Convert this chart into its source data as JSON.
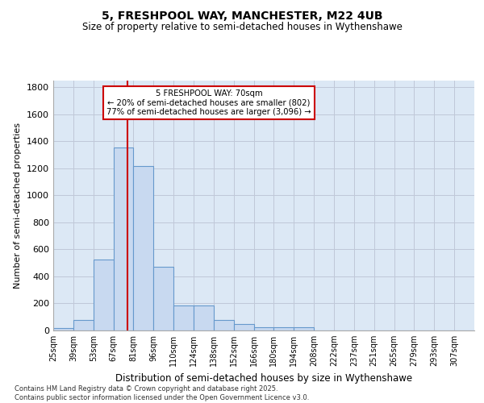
{
  "title": "5, FRESHPOOL WAY, MANCHESTER, M22 4UB",
  "subtitle": "Size of property relative to semi-detached houses in Wythenshawe",
  "xlabel": "Distribution of semi-detached houses by size in Wythenshawe",
  "ylabel": "Number of semi-detached properties",
  "footnote1": "Contains HM Land Registry data © Crown copyright and database right 2025.",
  "footnote2": "Contains public sector information licensed under the Open Government Licence v3.0.",
  "annotation_title": "5 FRESHPOOL WAY: 70sqm",
  "annotation_line1": "← 20% of semi-detached houses are smaller (802)",
  "annotation_line2": "77% of semi-detached houses are larger (3,096) →",
  "bar_color": "#c8d9f0",
  "bar_edge_color": "#6699cc",
  "grid_color": "#c0c8d8",
  "background_color": "#dce8f5",
  "vline_color": "#cc0000",
  "vline_x": 70,
  "categories": [
    "25sqm",
    "39sqm",
    "53sqm",
    "67sqm",
    "81sqm",
    "96sqm",
    "110sqm",
    "124sqm",
    "138sqm",
    "152sqm",
    "166sqm",
    "180sqm",
    "194sqm",
    "208sqm",
    "222sqm",
    "237sqm",
    "251sqm",
    "265sqm",
    "279sqm",
    "293sqm",
    "307sqm"
  ],
  "bin_edges": [
    18,
    32,
    46,
    60,
    74,
    88,
    102,
    116,
    130,
    144,
    158,
    172,
    186,
    200,
    214,
    228,
    242,
    256,
    270,
    284,
    298,
    312
  ],
  "values": [
    20,
    80,
    525,
    1355,
    1215,
    470,
    185,
    185,
    80,
    50,
    25,
    25,
    25,
    0,
    0,
    0,
    0,
    0,
    0,
    0,
    0
  ],
  "ylim": [
    0,
    1850
  ],
  "yticks": [
    0,
    200,
    400,
    600,
    800,
    1000,
    1200,
    1400,
    1600,
    1800
  ]
}
